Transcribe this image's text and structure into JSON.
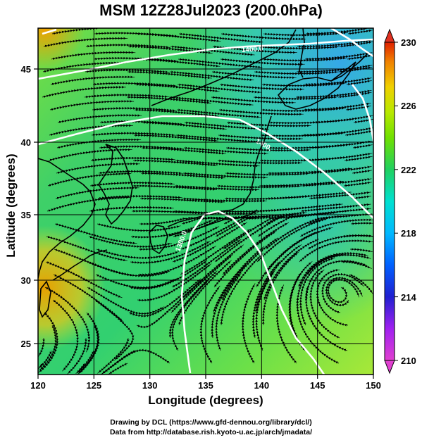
{
  "title": "MSM 12Z28Jul2023 (200.0hPa)",
  "x_axis_label": "Longitude (degrees)",
  "y_axis_label": "Latitude  (degrees)",
  "footer": {
    "line1": "Drawing by DCL (https://www.gfd-dennou.org/library/dcl/)",
    "line2": "Data from http://database.rish.kyoto-u.ac.jp/arch/jmadata/"
  },
  "map": {
    "lon_range": [
      120,
      150
    ],
    "lat_range": [
      22.4,
      47.6
    ],
    "lon_ticks": [
      120,
      125,
      130,
      135,
      140,
      145,
      150
    ],
    "lat_ticks": [
      25,
      30,
      35,
      40,
      45
    ],
    "colorbar": {
      "ticks": [
        210,
        214,
        218,
        222,
        226,
        230
      ],
      "range": [
        210,
        230
      ],
      "colors": [
        "#e040d0",
        "#a020f0",
        "#2020d0",
        "#0060ff",
        "#00b8ff",
        "#00e0d0",
        "#20d060",
        "#70e000",
        "#b8e800",
        "#f0d000",
        "#f08000",
        "#e02000"
      ]
    },
    "contour_labels": [
      "1400.0",
      "1400.",
      "1300.0"
    ],
    "field_colors": {
      "northeast": "#35a8e8",
      "central": "#2fd06a",
      "south": "#88e040",
      "southwest": "#e8a000"
    }
  }
}
